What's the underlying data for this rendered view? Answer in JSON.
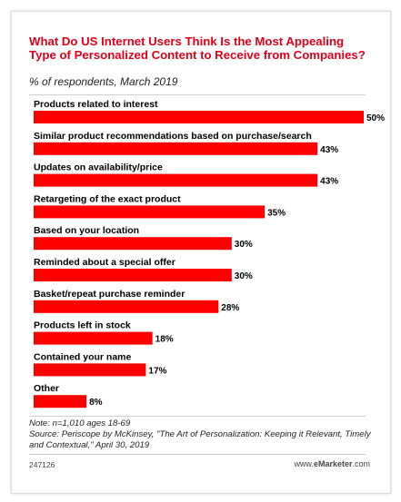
{
  "header": {
    "title": "What Do US Internet Users Think Is the Most Appealing Type of Personalized Content to Receive from Companies?",
    "subtitle": "% of respondents, March 2019"
  },
  "chart_data": {
    "type": "bar",
    "orientation": "horizontal",
    "categories": [
      "Products related to interest",
      "Similar product recommendations based on purchase/search",
      "Updates on availability/price",
      "Retargeting of the exact product",
      "Based on your location",
      "Reminded about a special offer",
      "Basket/repeat purchase reminder",
      "Products left in stock",
      "Contained your name",
      "Other"
    ],
    "values": [
      50,
      43,
      43,
      35,
      30,
      30,
      28,
      18,
      17,
      8
    ],
    "value_labels": [
      "50%",
      "43%",
      "43%",
      "35%",
      "30%",
      "30%",
      "28%",
      "18%",
      "17%",
      "8%"
    ],
    "xlim": [
      0,
      50
    ],
    "bar_color": "#ff0000",
    "label_color": "#000000"
  },
  "notes": {
    "note": "Note: n=1,010 ages 18-69",
    "source": "Source: Periscope by McKinsey, \"The Art of Personalization: Keeping it Relevant, Timely and Contextual,\" April 30, 2019"
  },
  "footer": {
    "id": "247126",
    "brand_prefix": "www.",
    "brand_name": "eMarketer",
    "brand_suffix": ".com"
  },
  "colors": {
    "accent": "#e1001a",
    "bar": "#ff0000"
  }
}
